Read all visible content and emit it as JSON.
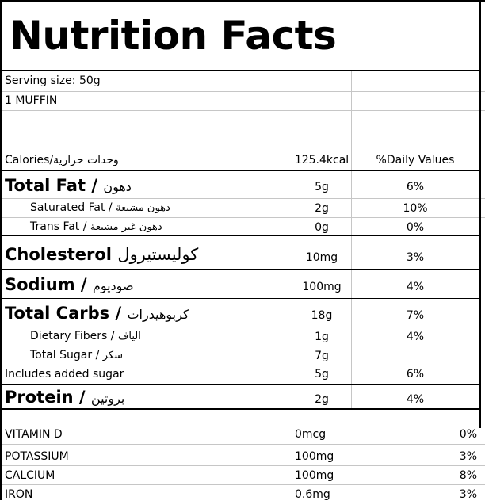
{
  "title": "Nutrition Facts",
  "serving_size_label": "Serving size:",
  "serving_size_value": "50g",
  "serving_unit": "1 MUFFIN",
  "header": {
    "calories_label": "Calories/",
    "calories_label_ar": "وحدات حرارية",
    "calories_value": "125.4kcal",
    "daily_values_label": "%Daily Values"
  },
  "nutrients": [
    {
      "label": "Total Fat /",
      "label_ar": "دهون",
      "amount": "5g",
      "dv": "6%"
    },
    {
      "label": "Saturated Fat /",
      "label_ar": "دهون مشبعة",
      "amount": "2g",
      "dv": "10%"
    },
    {
      "label": "Trans Fat /",
      "label_ar": "دهون غير مشبعة",
      "amount": "0g",
      "dv": "0%"
    },
    {
      "label": "Cholesterol",
      "label_ar": "كوليستيرول",
      "amount": "10mg",
      "dv": "3%"
    },
    {
      "label": "Sodium /",
      "label_ar": "صوديوم",
      "amount": "100mg",
      "dv": "4%"
    },
    {
      "label": "Total Carbs /",
      "label_ar": "كربوهيدرات",
      "amount": "18g",
      "dv": "7%"
    },
    {
      "label": "Dietary Fibers /",
      "label_ar": "الياف",
      "amount": "1g",
      "dv": "4%"
    },
    {
      "label": "Total Sugar /",
      "label_ar": "سكر",
      "amount": "7g",
      "dv": ""
    },
    {
      "label": "Includes added sugar",
      "label_ar": "",
      "amount": "5g",
      "dv": "6%"
    },
    {
      "label": "Protein /",
      "label_ar": "بروتين",
      "amount": "2g",
      "dv": "4%"
    }
  ],
  "vitamins": [
    {
      "label": "VITAMIN D",
      "amount": "0mcg",
      "dv": "0%"
    },
    {
      "label": "POTASSIUM",
      "amount": "100mg",
      "dv": "3%"
    },
    {
      "label": "CALCIUM",
      "amount": "100mg",
      "dv": "8%"
    },
    {
      "label": "IRON",
      "amount": "0.6mg",
      "dv": "3%"
    }
  ]
}
